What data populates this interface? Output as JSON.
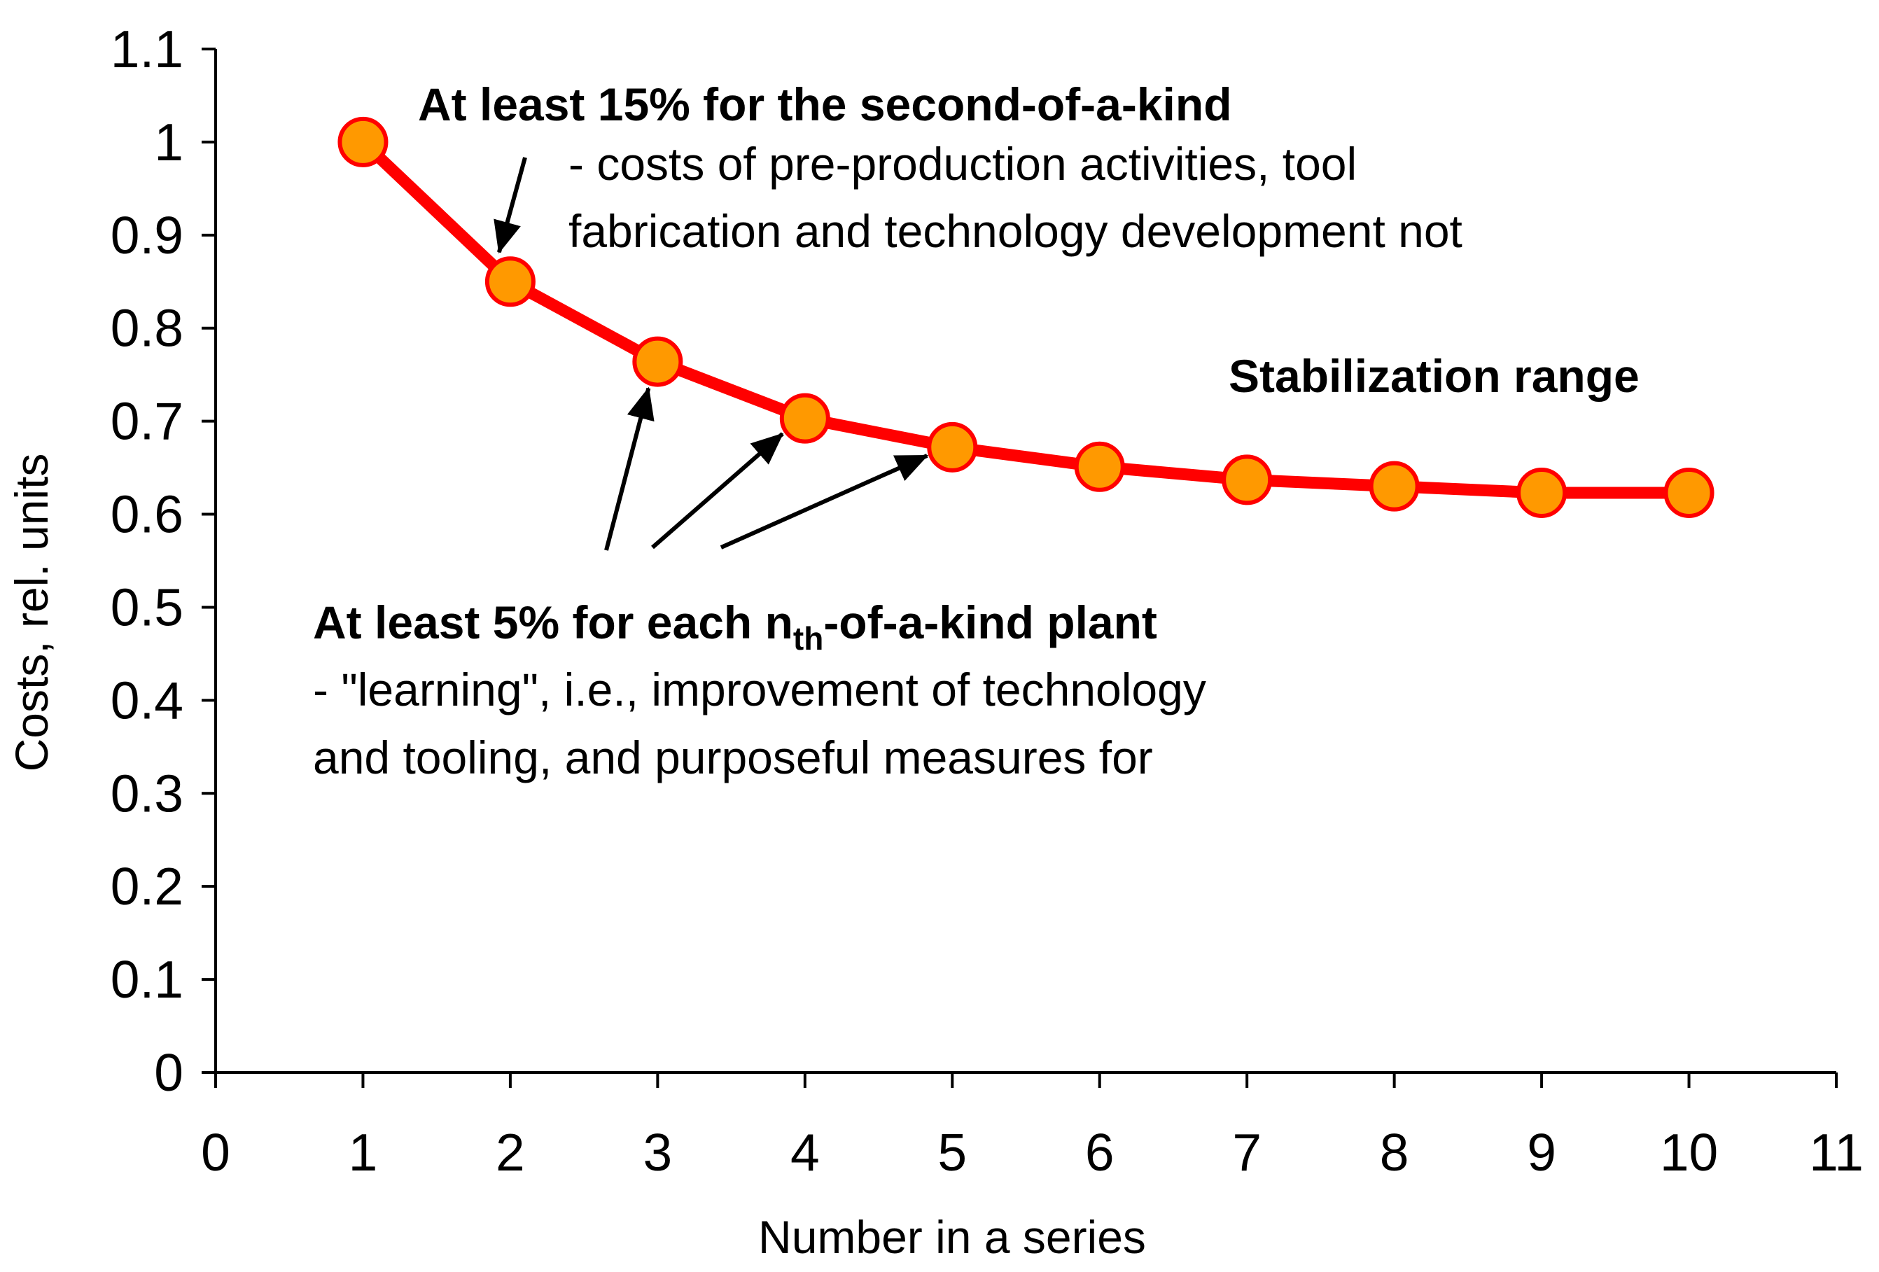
{
  "chart_data": {
    "type": "line",
    "title": "",
    "xlabel": "Number in a series",
    "ylabel": "Costs, rel. units",
    "xlim": [
      0,
      11
    ],
    "ylim": [
      0,
      1.1
    ],
    "x_ticks": [
      "0",
      "1",
      "2",
      "3",
      "4",
      "5",
      "6",
      "7",
      "8",
      "9",
      "10",
      "11"
    ],
    "y_ticks": [
      "0",
      "0.1",
      "0.2",
      "0.3",
      "0.4",
      "0.5",
      "0.6",
      "0.7",
      "0.8",
      "0.9",
      "1",
      "1.1"
    ],
    "grid": false,
    "legend": "none",
    "series": [
      {
        "name": "Costs",
        "line_color": "#ff0000",
        "marker_fill": "#ff9900",
        "marker_edge": "#ff0000",
        "x": [
          1,
          2,
          3,
          4,
          5,
          6,
          7,
          8,
          9,
          10
        ],
        "values": [
          1.0,
          0.85,
          0.764,
          0.703,
          0.672,
          0.651,
          0.637,
          0.63,
          0.623,
          0.623
        ]
      }
    ],
    "annotations": {
      "second_kind": {
        "title": "At least 15% for the second-of-a-kind",
        "line1": "- costs of pre-production activities, tool",
        "line2": "fabrication and technology development not",
        "arrow_targets": [
          2
        ]
      },
      "stabilization": {
        "title": "Stabilization range"
      },
      "nth_kind": {
        "title_pre": "At least 5% for each n",
        "title_sub": "th",
        "title_post": "-of-a-kind plant",
        "line1": "-  \"learning\", i.e., improvement of technology",
        "line2": "and tooling, and purposeful measures for",
        "arrow_targets": [
          3,
          4,
          5
        ]
      }
    }
  }
}
